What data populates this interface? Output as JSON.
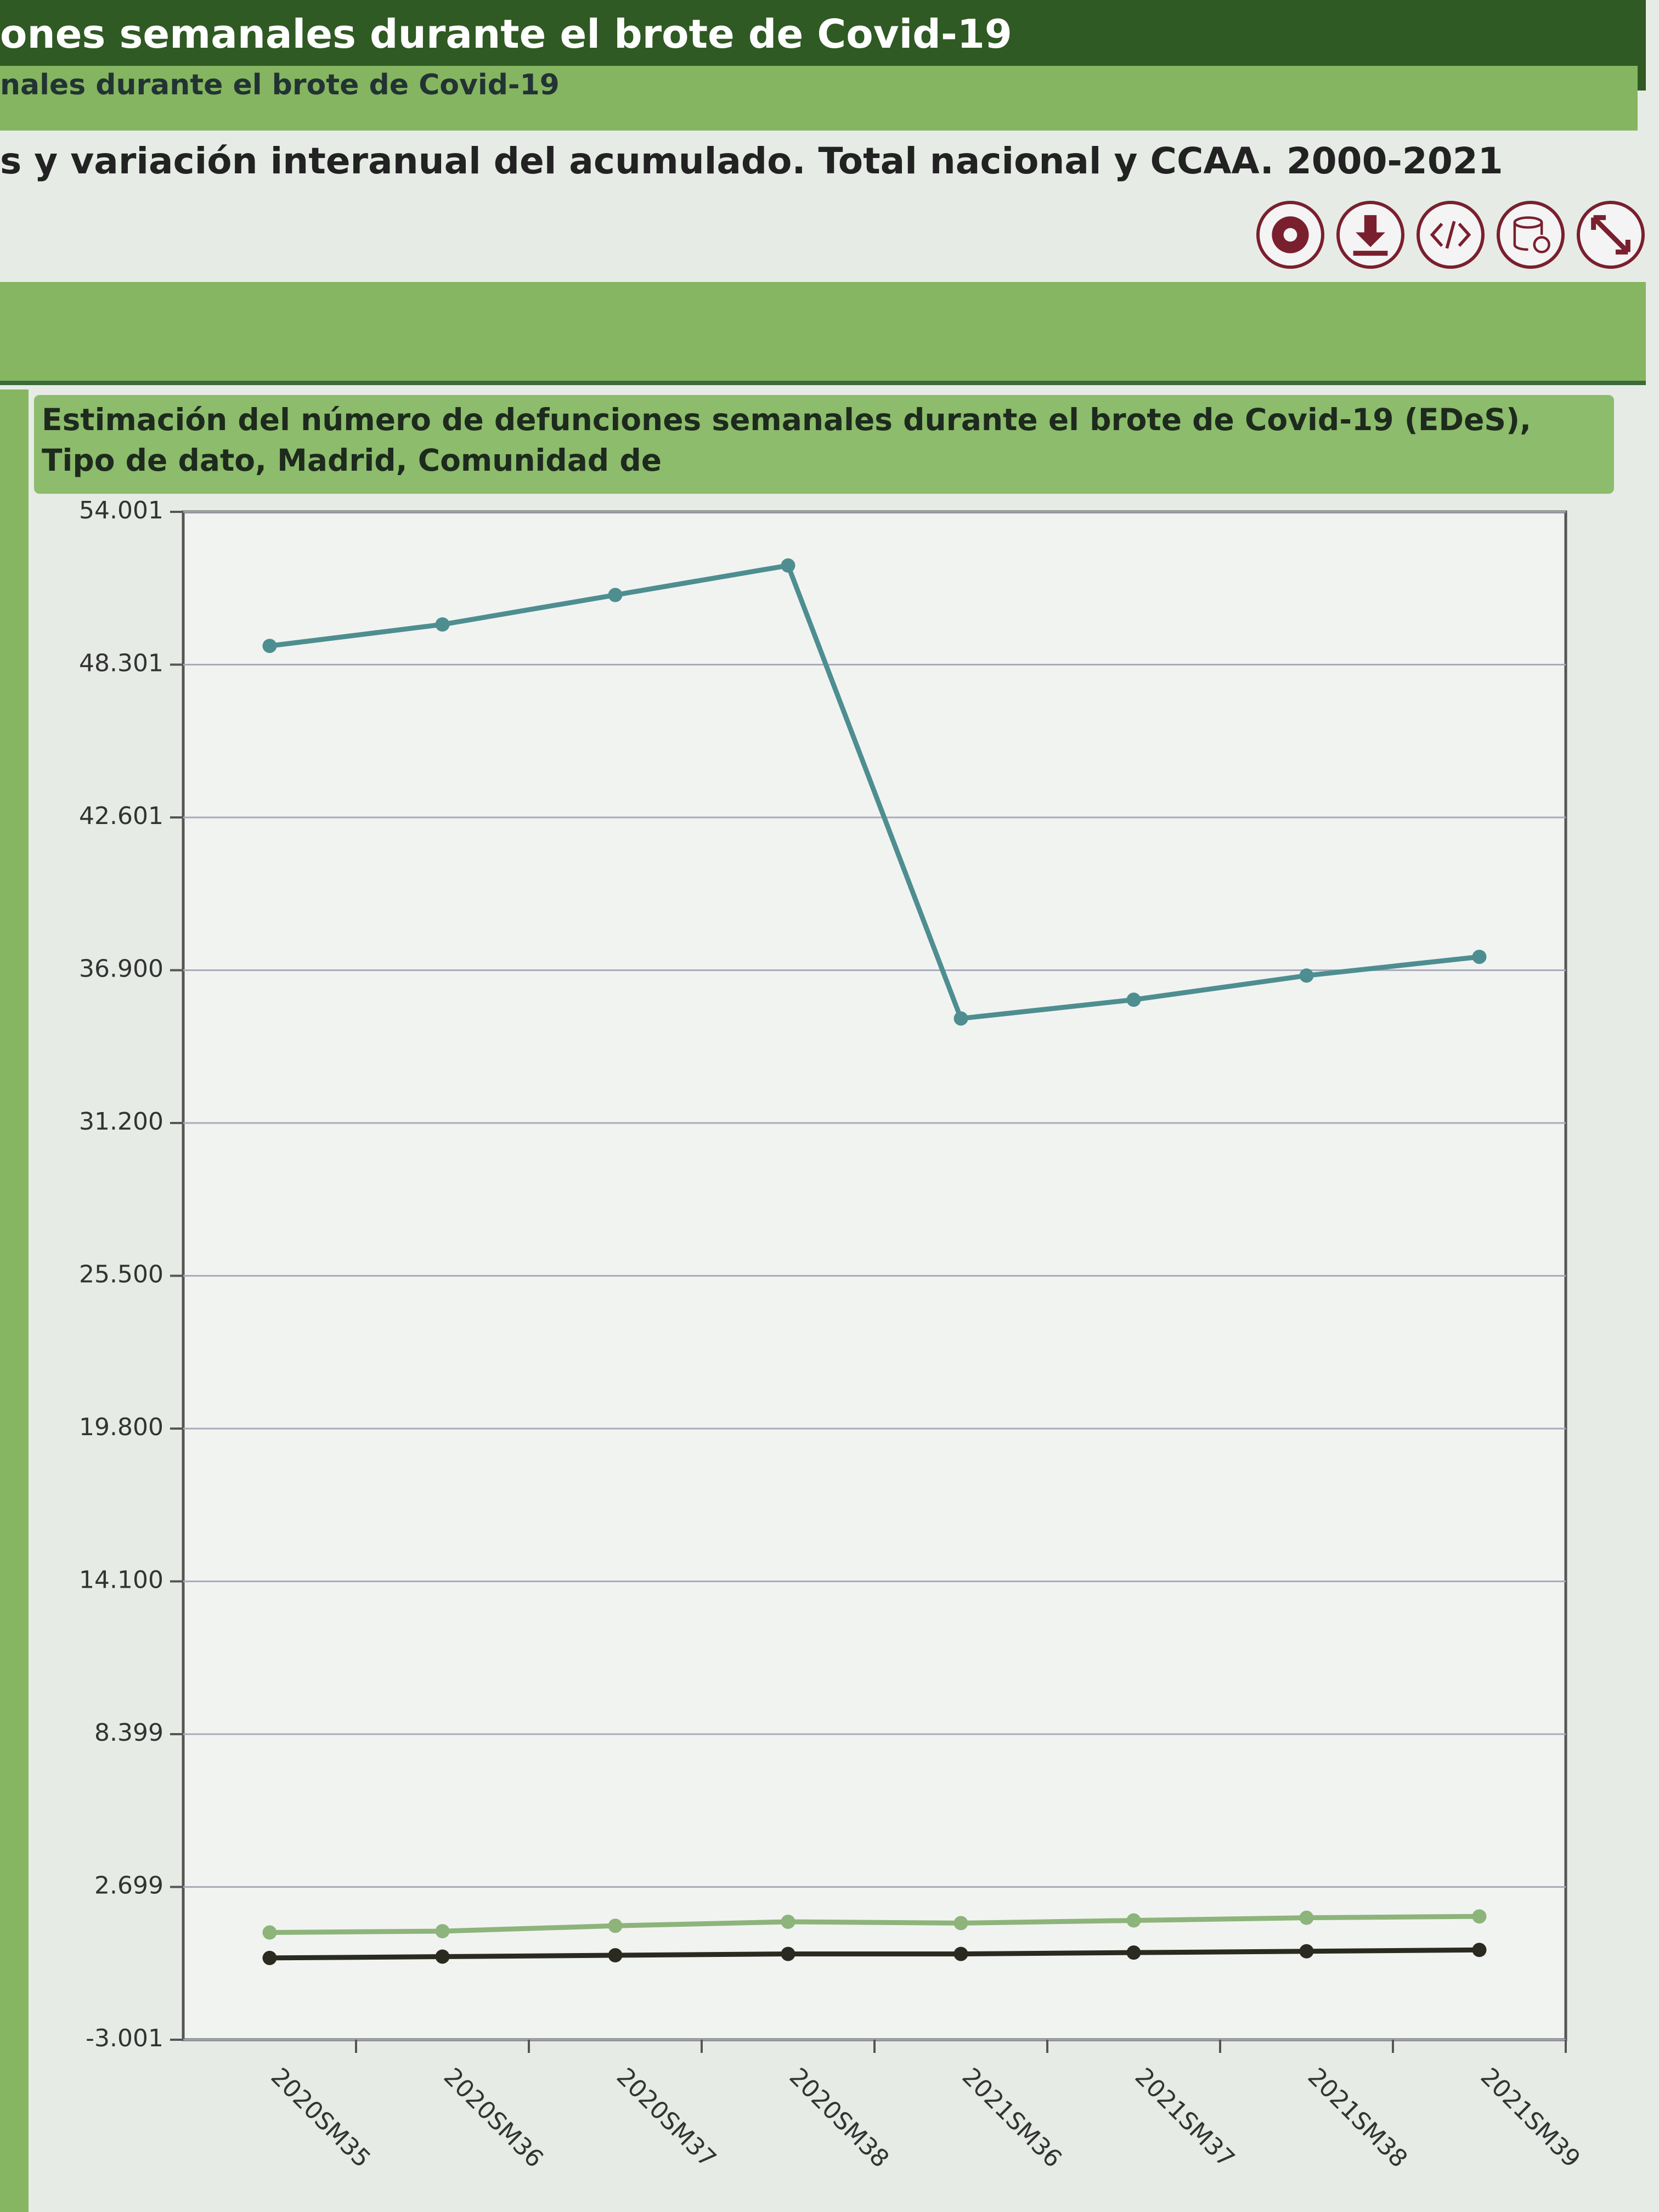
{
  "header": {
    "title": "ones semanales durante el brote de Covid-19",
    "subtitle": "nales durante el brote de Covid-19",
    "heading": "s y variación interanual del acumulado. Total nacional y CCAA. 2000-2021"
  },
  "chart_data": {
    "type": "line",
    "title": "Estimación del número de defunciones semanales durante el brote de Covid-19 (EDeS), Tipo de dato, Madrid, Comunidad de",
    "categories": [
      "2020SM35",
      "2020SM36",
      "2020SM37",
      "2020SM38",
      "2021SM36",
      "2021SM37",
      "2021SM38",
      "2021SM39"
    ],
    "series": [
      {
        "color": "#4e8e90",
        "values": [
          49000,
          49800,
          50900,
          52000,
          35100,
          35800,
          36700,
          37400
        ]
      },
      {
        "color": "#8db47a",
        "values": [
          1000,
          1050,
          1250,
          1400,
          1350,
          1450,
          1550,
          1600
        ]
      },
      {
        "color": "#2a2a20",
        "values": [
          50,
          100,
          150,
          200,
          200,
          250,
          300,
          350
        ]
      }
    ],
    "ylim": [
      -3001,
      54001
    ],
    "yticks": [
      {
        "value": 54001,
        "label": "54.001"
      },
      {
        "value": 48301,
        "label": "48.301"
      },
      {
        "value": 42601,
        "label": "42.601"
      },
      {
        "value": 36900,
        "label": "36.900"
      },
      {
        "value": 31200,
        "label": "31.200"
      },
      {
        "value": 25500,
        "label": "25.500"
      },
      {
        "value": 19800,
        "label": "19.800"
      },
      {
        "value": 14100,
        "label": "14.100"
      },
      {
        "value": 8399,
        "label": "8.399"
      },
      {
        "value": 2699,
        "label": "2.699"
      },
      {
        "value": -3001,
        "label": "-3.001"
      }
    ],
    "grid": true
  }
}
